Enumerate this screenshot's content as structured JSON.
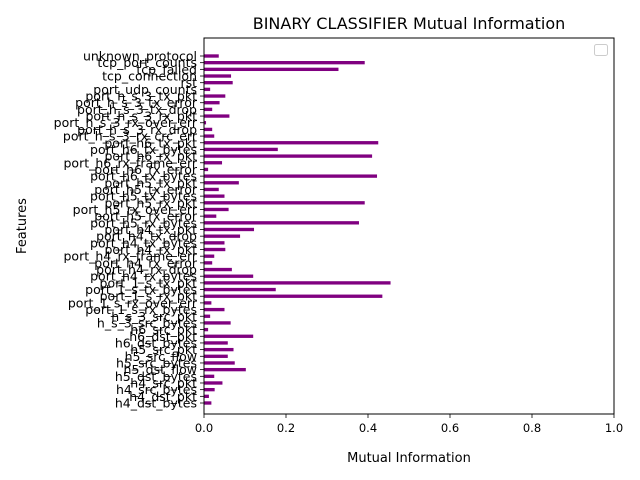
{
  "chart_data": {
    "type": "bar",
    "orientation": "horizontal",
    "title": "BINARY CLASSIFIER Mutual Information",
    "xlabel": "Mutual Information",
    "ylabel": "Features",
    "xlim": [
      0,
      1
    ],
    "x_ticks": [
      "0.0",
      "0.2",
      "0.4",
      "0.6",
      "0.8",
      "1.0"
    ],
    "bar_color": "#800080",
    "legend": {
      "placement": "top-right",
      "entries": []
    },
    "grid": false,
    "categories": [
      "unknown_protocol",
      "tcp_port_counts",
      "tcp_failed",
      "tcp_connection",
      "rst",
      "port_udp_counts",
      "port_h_s_3_tx_pkt",
      "port_h_s_3_tx_error",
      "port_h_s_3_tx_drop",
      "port_h_s_3_rx_pkt",
      "port_h_s_3_rx_over_err",
      "port_h_s_3_rx_drop",
      "port_h_s_3_rx_crc_err",
      "port_h6_tx_pkt",
      "port_h6_tx_bytes",
      "port_h6_rx_pkt",
      "port_h6_rx_frame_err",
      "port_h6_rx_error",
      "port_h6_rx_bytes",
      "port_h5_tx_pkt",
      "port_h5_tx_error",
      "port_h5_tx_bytes",
      "port_h5_rx_pkt",
      "port_h5_rx_over_err",
      "port_h5_rx_error",
      "port_h5_rx_bytes",
      "port_h4_tx_pkt",
      "port_h4_tx_drop",
      "port_h4_tx_bytes",
      "port_h4_rx_pkt",
      "port_h4_rx_frame_err",
      "port_h4_rx_error",
      "port_h4_rx_drop",
      "port_h4_rx_bytes",
      "port_1_s_tx_pkt",
      "port_1_s_tx_bytes",
      "port_1_s_rx_pkt",
      "port_1_s_rx_over_err",
      "port_1_s_rx_bytes",
      "h_s_3_src_pkt",
      "h_s_3_src_bytes",
      "h6_src_pkt",
      "h6_dst_pkt",
      "h6_dst_bytes",
      "h5_src_pkt",
      "h5_src_flow",
      "h5_src_bytes",
      "h5_dst_flow",
      "h5_dst_bytes",
      "h4_src_pkt",
      "h4_src_bytes",
      "h4_dst_pkt",
      "h4_dst_bytes"
    ],
    "values": [
      0.036,
      0.392,
      0.328,
      0.066,
      0.07,
      0.015,
      0.052,
      0.038,
      0.02,
      0.062,
      0.005,
      0.02,
      0.025,
      0.425,
      0.18,
      0.41,
      0.044,
      0.01,
      0.422,
      0.085,
      0.036,
      0.05,
      0.392,
      0.06,
      0.03,
      0.378,
      0.122,
      0.088,
      0.05,
      0.052,
      0.025,
      0.02,
      0.068,
      0.12,
      0.455,
      0.175,
      0.435,
      0.018,
      0.05,
      0.015,
      0.065,
      0.01,
      0.12,
      0.058,
      0.072,
      0.058,
      0.075,
      0.102,
      0.025,
      0.045,
      0.026,
      0.012,
      0.018
    ]
  }
}
